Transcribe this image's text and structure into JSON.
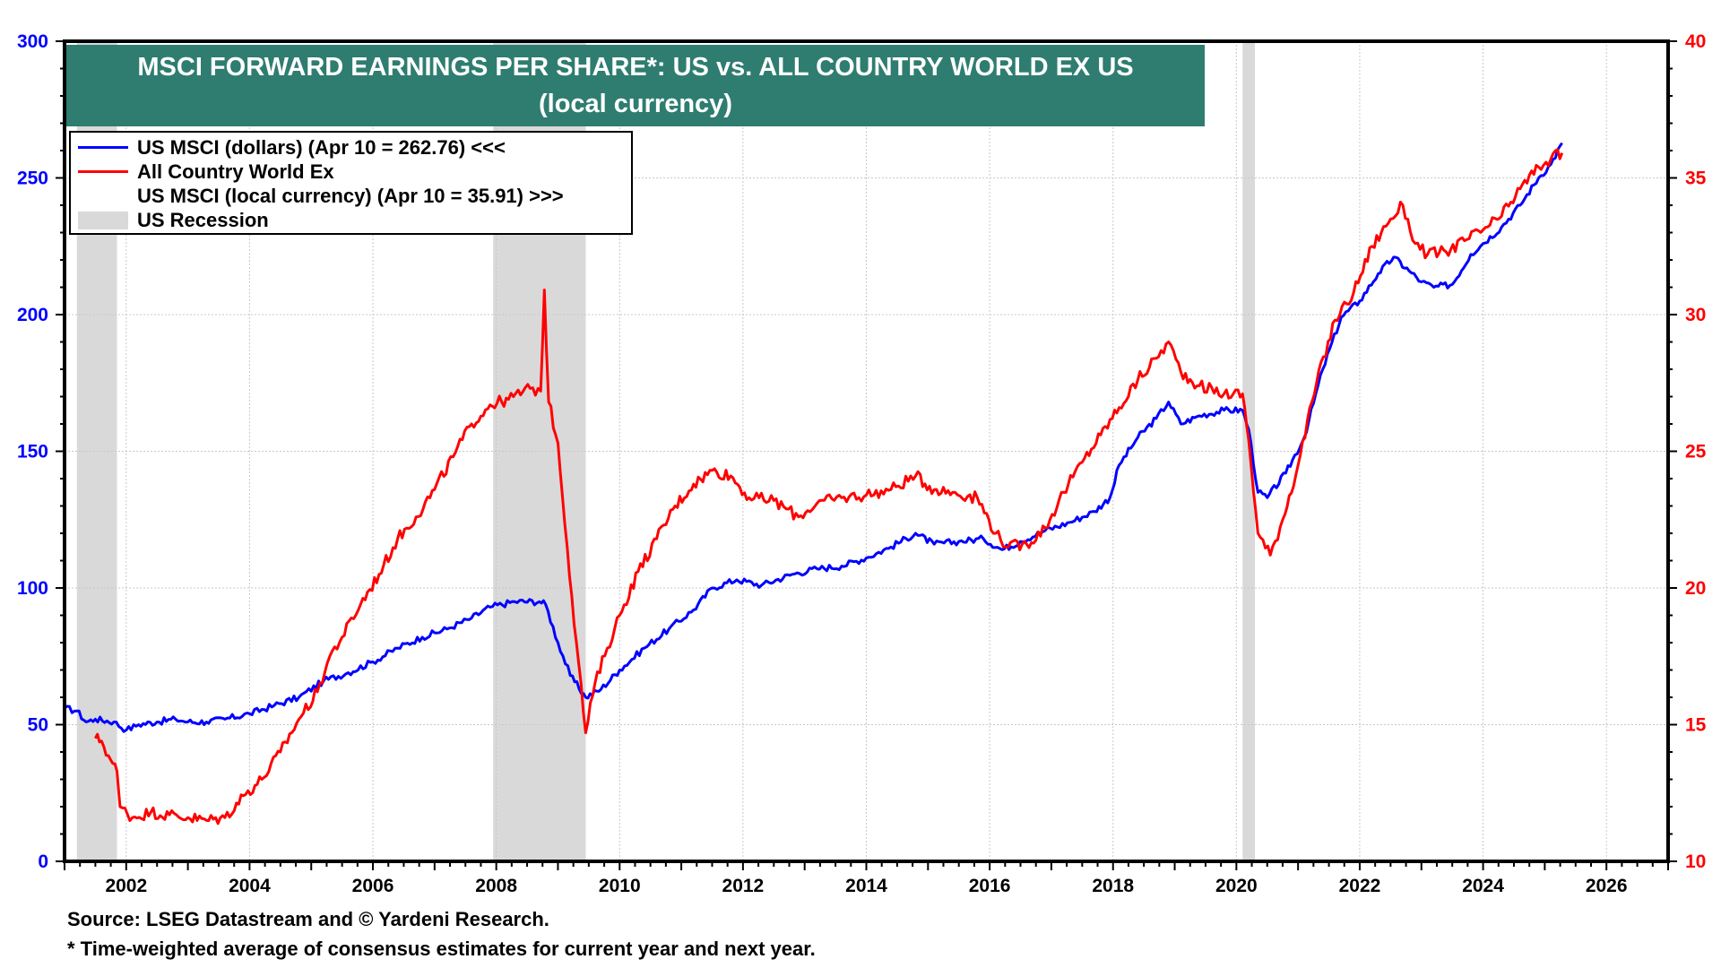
{
  "chart_data": {
    "type": "line",
    "title": "MSCI FORWARD EARNINGS PER SHARE*: US vs. ALL COUNTRY WORLD EX US",
    "subtitle": "(local currency)",
    "xlabel": "",
    "ylabel_left": "",
    "ylabel_right": "",
    "xlim": [
      2001.0,
      2027.0
    ],
    "ylim_left": [
      0,
      300
    ],
    "ylim_right": [
      10,
      40
    ],
    "x_ticks": [
      2002,
      2004,
      2006,
      2008,
      2010,
      2012,
      2014,
      2016,
      2018,
      2020,
      2022,
      2024,
      2026
    ],
    "x_tick_labels": [
      "2002",
      "2004",
      "2006",
      "2008",
      "2010",
      "2012",
      "2014",
      "2016",
      "2018",
      "2020",
      "2022",
      "2024",
      "2026"
    ],
    "y_ticks_left": [
      0,
      50,
      100,
      150,
      200,
      250,
      300
    ],
    "y_tick_labels_left": [
      "0",
      "50",
      "100",
      "150",
      "200",
      "250",
      "300"
    ],
    "y_ticks_right": [
      10,
      15,
      20,
      25,
      30,
      35,
      40
    ],
    "y_tick_labels_right": [
      "10",
      "15",
      "20",
      "25",
      "30",
      "35",
      "40"
    ],
    "grid": true,
    "legend_position": "top-left",
    "legend": [
      {
        "label": "US MSCI (dollars) (Apr 10 = 262.76) <<<",
        "kind": "line",
        "color": "#0000ff"
      },
      {
        "label": "All Country World Ex",
        "kind": "line",
        "color": "#ff0000"
      },
      {
        "label": "US MSCI (local currency) (Apr 10 = 35.91) >>>",
        "kind": "none",
        "color": ""
      },
      {
        "label": "US Recession",
        "kind": "fill",
        "color": "#d9d9d9"
      }
    ],
    "recessions": [
      {
        "start": 2001.2,
        "end": 2001.85
      },
      {
        "start": 2007.95,
        "end": 2009.45
      },
      {
        "start": 2020.1,
        "end": 2020.3
      }
    ],
    "series": [
      {
        "name": "US MSCI (dollars)",
        "axis": "left",
        "color": "#0000ff",
        "x": [
          2001.0,
          2001.2,
          2001.35,
          2001.5,
          2001.8,
          2002.0,
          2002.2,
          2002.5,
          2002.8,
          2003.0,
          2003.3,
          2003.6,
          2004.0,
          2004.4,
          2004.8,
          2005.2,
          2005.6,
          2006.0,
          2006.4,
          2006.8,
          2007.2,
          2007.6,
          2007.9,
          2008.3,
          2008.7,
          2008.8,
          2009.0,
          2009.2,
          2009.45,
          2009.7,
          2010.0,
          2010.4,
          2010.8,
          2011.2,
          2011.5,
          2011.9,
          2012.3,
          2012.8,
          2013.2,
          2013.6,
          2014.0,
          2014.4,
          2014.8,
          2015.1,
          2015.5,
          2015.9,
          2016.2,
          2016.5,
          2016.9,
          2017.3,
          2017.7,
          2017.95,
          2018.1,
          2018.4,
          2018.7,
          2018.9,
          2019.1,
          2019.4,
          2019.8,
          2020.1,
          2020.2,
          2020.35,
          2020.5,
          2020.8,
          2021.1,
          2021.4,
          2021.7,
          2022.0,
          2022.3,
          2022.55,
          2022.8,
          2023.0,
          2023.2,
          2023.5,
          2023.8,
          2024.0,
          2024.3,
          2024.6,
          2024.9,
          2025.1,
          2025.28
        ],
        "values": [
          56,
          55,
          51,
          52,
          51,
          48,
          50,
          51,
          52,
          51,
          51,
          52,
          54,
          57,
          60,
          66,
          69,
          73,
          78,
          82,
          85,
          89,
          93,
          95,
          95,
          94,
          80,
          68,
          60,
          63,
          70,
          78,
          85,
          92,
          100,
          103,
          101,
          105,
          107,
          108,
          111,
          115,
          120,
          116,
          117,
          118,
          114,
          117,
          121,
          124,
          128,
          133,
          145,
          155,
          162,
          168,
          160,
          163,
          165,
          165,
          158,
          135,
          133,
          142,
          155,
          180,
          199,
          205,
          215,
          221,
          216,
          212,
          210,
          211,
          222,
          226,
          232,
          240,
          250,
          255,
          262.76
        ]
      },
      {
        "name": "All Country World Ex",
        "axis": "right",
        "color": "#ff0000",
        "x": [
          2001.5,
          2001.6,
          2001.75,
          2001.85,
          2001.9,
          2002.1,
          2002.4,
          2002.7,
          2003.0,
          2003.3,
          2003.6,
          2003.9,
          2004.2,
          2004.5,
          2004.8,
          2005.1,
          2005.3,
          2005.5,
          2005.8,
          2006.1,
          2006.4,
          2006.7,
          2007.0,
          2007.3,
          2007.6,
          2007.9,
          2008.2,
          2008.55,
          2008.72,
          2008.78,
          2008.85,
          2009.0,
          2009.15,
          2009.3,
          2009.45,
          2009.6,
          2009.8,
          2010.0,
          2010.3,
          2010.6,
          2010.9,
          2011.2,
          2011.5,
          2011.8,
          2012.1,
          2012.5,
          2012.9,
          2013.2,
          2013.6,
          2014.0,
          2014.4,
          2014.8,
          2015.1,
          2015.4,
          2015.8,
          2016.1,
          2016.3,
          2016.6,
          2016.9,
          2017.2,
          2017.5,
          2017.8,
          2018.1,
          2018.4,
          2018.7,
          2018.9,
          2019.1,
          2019.4,
          2019.8,
          2020.1,
          2020.2,
          2020.35,
          2020.55,
          2020.75,
          2021.0,
          2021.3,
          2021.6,
          2021.9,
          2022.2,
          2022.5,
          2022.7,
          2022.9,
          2023.1,
          2023.4,
          2023.7,
          2024.0,
          2024.3,
          2024.6,
          2024.9,
          2025.1,
          2025.28
        ],
        "values": [
          14.5,
          14.4,
          13.7,
          13.3,
          12.0,
          11.6,
          11.8,
          11.7,
          11.6,
          11.5,
          11.6,
          12.4,
          13.0,
          14.0,
          15.2,
          16.2,
          17.5,
          18.2,
          19.4,
          20.5,
          21.8,
          22.6,
          23.6,
          24.8,
          26.0,
          26.7,
          26.9,
          27.3,
          27.2,
          30.9,
          26.8,
          25.3,
          21.5,
          18.0,
          14.7,
          16.5,
          17.8,
          19.0,
          20.6,
          21.8,
          23.0,
          23.8,
          24.3,
          24.1,
          23.3,
          23.2,
          22.6,
          23.1,
          23.3,
          23.4,
          23.6,
          24.1,
          23.6,
          23.5,
          23.3,
          22.0,
          21.5,
          21.6,
          22.2,
          23.5,
          24.6,
          25.6,
          26.6,
          27.6,
          28.4,
          29.0,
          27.9,
          27.4,
          27.1,
          27.1,
          25.4,
          22.0,
          21.2,
          22.5,
          24.5,
          27.5,
          29.8,
          30.8,
          32.5,
          33.5,
          34.0,
          32.6,
          32.2,
          32.3,
          32.7,
          33.1,
          33.6,
          34.6,
          35.4,
          35.7,
          35.91
        ]
      }
    ],
    "source_note": "Source: LSEG Datastream and © Yardeni Research.",
    "footnote": "* Time-weighted average of consensus estimates for current year and next year."
  }
}
